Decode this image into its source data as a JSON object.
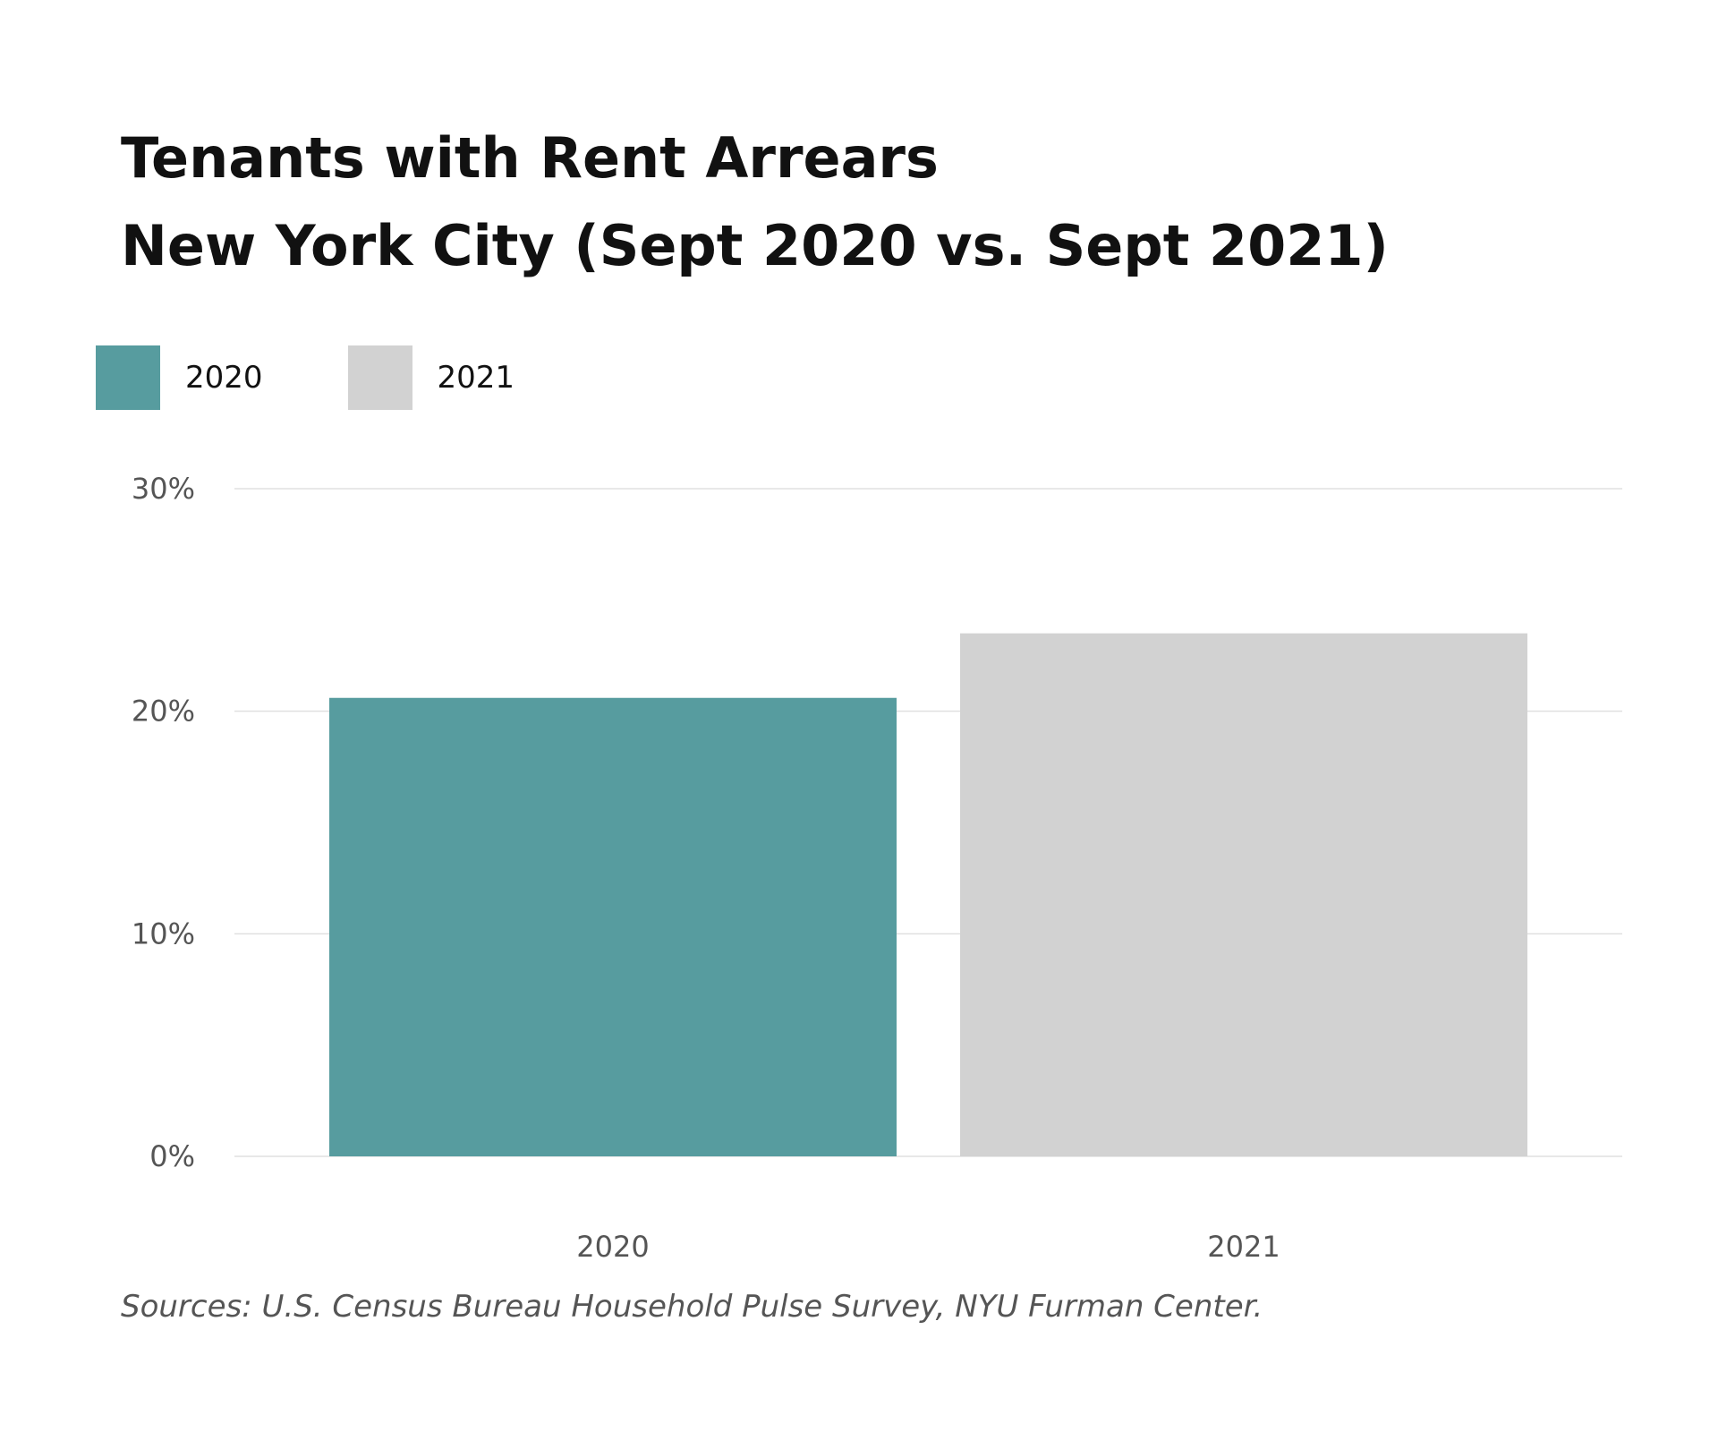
{
  "chart_data": {
    "type": "bar",
    "title_lines": [
      "Tenants with Rent Arrears",
      "New York City (Sept 2020 vs. Sept 2021)"
    ],
    "categories": [
      "2020",
      "2021"
    ],
    "values": [
      20.6,
      23.5
    ],
    "colors": [
      "#579c9f",
      "#d2d2d2"
    ],
    "ylim": [
      0,
      30
    ],
    "yticks": [
      0,
      10,
      20,
      30
    ],
    "ytick_labels": [
      "0%",
      "10%",
      "20%",
      "30%"
    ],
    "grid": true,
    "legend": {
      "placement": "top-left",
      "items": [
        {
          "label": "2020",
          "color": "#579c9f"
        },
        {
          "label": "2021",
          "color": "#d2d2d2"
        }
      ]
    },
    "source": "Sources: U.S. Census Bureau Household Pulse Survey, NYU Furman Center."
  }
}
